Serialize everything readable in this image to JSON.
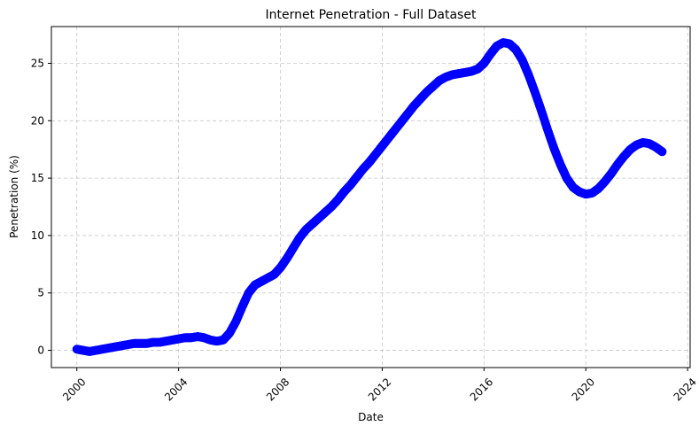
{
  "chart_data": {
    "type": "scatter",
    "title": "Internet Penetration - Full Dataset",
    "xlabel": "Date",
    "ylabel": "Penetration (%)",
    "xlim": [
      1999.0,
      2024.1
    ],
    "ylim": [
      -1.5,
      28.2
    ],
    "x_ticks": [
      2000,
      2004,
      2008,
      2012,
      2016,
      2020,
      2024
    ],
    "x_tick_labels": [
      "2000",
      "2004",
      "2008",
      "2012",
      "2016",
      "2020",
      "2024"
    ],
    "y_ticks": [
      0,
      5,
      10,
      15,
      20,
      25
    ],
    "y_tick_labels": [
      "0",
      "5",
      "10",
      "15",
      "20",
      "25"
    ],
    "grid": true,
    "marker_color": "#0000ff",
    "series": [
      {
        "x": [
          2000.0,
          2000.25,
          2000.5,
          2000.75,
          2001.0,
          2001.25,
          2001.5,
          2001.75,
          2002.0,
          2002.25,
          2002.5,
          2002.75,
          2003.0,
          2003.25,
          2003.5,
          2003.75,
          2004.0,
          2004.25,
          2004.5,
          2004.75,
          2005.0,
          2005.25,
          2005.5,
          2005.75,
          2006.0,
          2006.25,
          2006.5,
          2006.75,
          2007.0,
          2007.25,
          2007.5,
          2007.75,
          2008.0,
          2008.25,
          2008.5,
          2008.75,
          2009.0,
          2009.25,
          2009.5,
          2009.75,
          2010.0,
          2010.25,
          2010.5,
          2010.75,
          2011.0,
          2011.25,
          2011.5,
          2011.75,
          2012.0,
          2012.25,
          2012.5,
          2012.75,
          2013.0,
          2013.25,
          2013.5,
          2013.75,
          2014.0,
          2014.25,
          2014.5,
          2014.75,
          2015.0,
          2015.25,
          2015.5,
          2015.75,
          2016.0,
          2016.25,
          2016.5,
          2016.75,
          2017.0,
          2017.25,
          2017.5,
          2017.75,
          2018.0,
          2018.25,
          2018.5,
          2018.75,
          2019.0,
          2019.25,
          2019.5,
          2019.75,
          2020.0,
          2020.25,
          2020.5,
          2020.75,
          2021.0,
          2021.25,
          2021.5,
          2021.75,
          2022.0,
          2022.25,
          2022.5,
          2022.75,
          2023.0
        ],
        "y": [
          0.1,
          0.0,
          -0.1,
          0.0,
          0.1,
          0.2,
          0.3,
          0.4,
          0.5,
          0.6,
          0.6,
          0.6,
          0.7,
          0.7,
          0.8,
          0.9,
          1.0,
          1.1,
          1.1,
          1.2,
          1.1,
          0.9,
          0.8,
          0.9,
          1.5,
          2.5,
          3.8,
          5.0,
          5.7,
          6.0,
          6.3,
          6.6,
          7.2,
          8.0,
          8.9,
          9.8,
          10.5,
          11.0,
          11.5,
          12.0,
          12.5,
          13.1,
          13.8,
          14.4,
          15.1,
          15.8,
          16.4,
          17.1,
          17.8,
          18.5,
          19.2,
          19.9,
          20.6,
          21.3,
          21.9,
          22.5,
          23.0,
          23.5,
          23.8,
          24.0,
          24.1,
          24.2,
          24.3,
          24.5,
          25.0,
          25.8,
          26.5,
          26.8,
          26.7,
          26.2,
          25.3,
          24.0,
          22.5,
          20.9,
          19.2,
          17.6,
          16.2,
          15.0,
          14.2,
          13.8,
          13.6,
          13.7,
          14.1,
          14.7,
          15.4,
          16.2,
          16.9,
          17.5,
          17.9,
          18.1,
          18.0,
          17.7,
          17.3
        ]
      }
    ]
  }
}
